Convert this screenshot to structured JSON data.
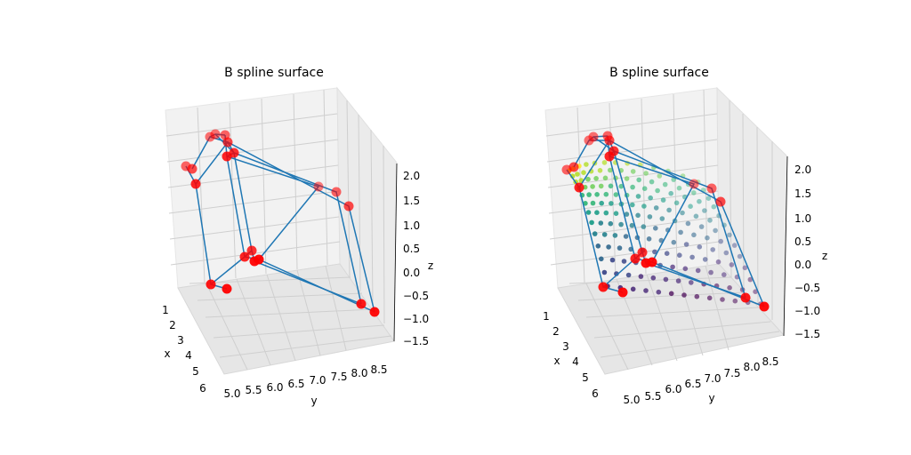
{
  "chart_data": [
    {
      "type": "scatter3d",
      "title": "B spline surface",
      "xlabel": "x",
      "ylabel": "y",
      "zlabel": "z",
      "x_ticks": [
        "1",
        "2",
        "3",
        "4",
        "5",
        "6"
      ],
      "y_ticks": [
        "5.0",
        "5.5",
        "6.0",
        "6.5",
        "7.0",
        "7.5",
        "8.0",
        "8.5"
      ],
      "z_ticks": [
        "2.0",
        "1.5",
        "1.0",
        "0.5",
        "0.0",
        "−0.5",
        "−1.0",
        "−1.5"
      ],
      "xlim": [
        0.5,
        6.5
      ],
      "ylim": [
        4.8,
        8.8
      ],
      "zlim": [
        -1.6,
        2.1
      ],
      "grid": true,
      "control_point_color": "#ff0000",
      "control_net_color": "#1f77b4",
      "show_surface": false
    },
    {
      "type": "scatter3d",
      "title": "B spline surface",
      "xlabel": "x",
      "ylabel": "y",
      "zlabel": "z",
      "x_ticks": [
        "1",
        "2",
        "3",
        "4",
        "5",
        "6"
      ],
      "y_ticks": [
        "5.0",
        "5.5",
        "6.0",
        "6.5",
        "7.0",
        "7.5",
        "8.0",
        "8.5"
      ],
      "z_ticks": [
        "2.0",
        "1.5",
        "1.0",
        "0.5",
        "0.0",
        "−0.5",
        "−1.0",
        "−1.5"
      ],
      "xlim": [
        0.5,
        6.5
      ],
      "ylim": [
        4.8,
        8.8
      ],
      "zlim": [
        -1.6,
        2.1
      ],
      "grid": true,
      "control_point_color": "#ff0000",
      "control_net_color": "#1f77b4",
      "show_surface": true,
      "surface_colormap": "viridis"
    }
  ]
}
